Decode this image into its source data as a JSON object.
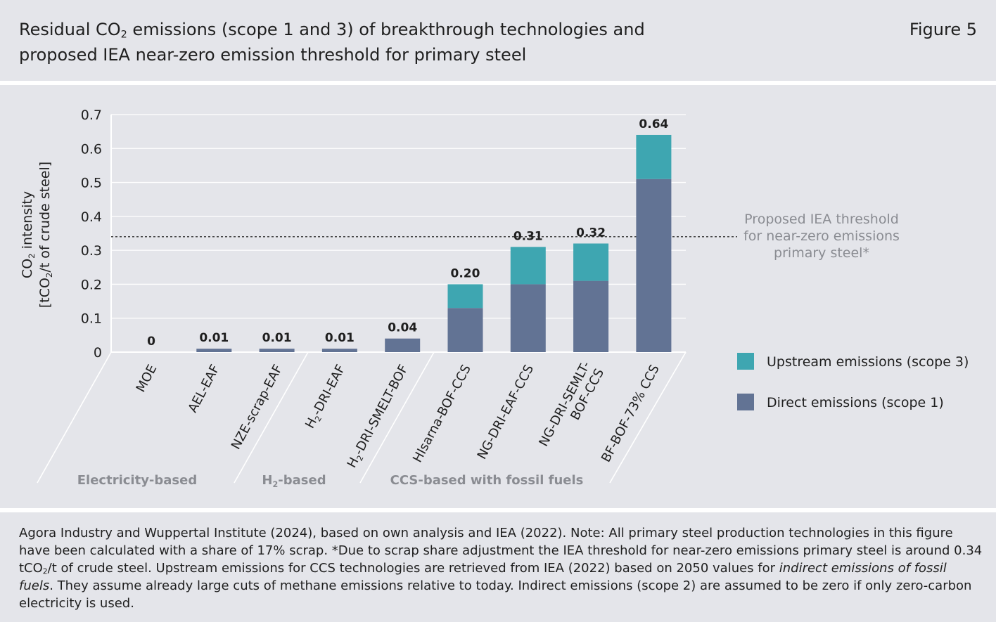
{
  "header": {
    "title_parts": [
      "Residual CO",
      "2",
      " emissions (scope 1 and 3) of breakthrough technologies and proposed IEA near-zero emission threshold for primary steel"
    ],
    "figure_label": "Figure 5"
  },
  "chart_data": {
    "type": "bar",
    "stacked": true,
    "ylabel_line1_parts": [
      "CO",
      "2",
      " intensity"
    ],
    "ylabel_line2_parts": [
      "[tCO",
      "2",
      "/t of crude steel]"
    ],
    "ylim": [
      0,
      0.7
    ],
    "yticks": [
      0,
      0.1,
      0.2,
      0.3,
      0.4,
      0.5,
      0.6,
      0.7
    ],
    "ytick_labels": [
      "0",
      "0.1",
      "0.2",
      "0.3",
      "0.4",
      "0.5",
      "0.6",
      "0.7"
    ],
    "grid": true,
    "categories": [
      {
        "parts": [
          "MOE"
        ]
      },
      {
        "parts": [
          "AEL-EAF"
        ]
      },
      {
        "parts": [
          "NZE-scrap-EAF"
        ]
      },
      {
        "parts": [
          "H",
          "2",
          "-DRI-EAF"
        ]
      },
      {
        "parts": [
          "H",
          "2",
          "-DRI-SMELT-BOF"
        ]
      },
      {
        "parts": [
          "HIsarna-BOF-CCS"
        ]
      },
      {
        "parts": [
          "NG-DRI-EAF-CCS"
        ]
      },
      {
        "parts": [
          "NG-DRI-SEMLT-",
          "BOF-CCS"
        ],
        "multiline": true
      },
      {
        "parts": [
          "BF-BOF-73% CCS"
        ]
      }
    ],
    "series": [
      {
        "name": "Direct emissions (scope 1)",
        "color": "#627394",
        "values": [
          0,
          0.01,
          0.01,
          0.01,
          0.04,
          0.13,
          0.2,
          0.21,
          0.51
        ]
      },
      {
        "name": "Upstream emissions (scope 3)",
        "color": "#3ea6b1",
        "values": [
          0,
          0,
          0,
          0,
          0,
          0.07,
          0.11,
          0.11,
          0.13
        ]
      }
    ],
    "total_labels": [
      "0",
      "0.01",
      "0.01",
      "0.01",
      "0.04",
      "0.20",
      "0.31",
      "0.32",
      "0.64"
    ],
    "groups": [
      {
        "label_parts": [
          "Electricity-based"
        ],
        "span": [
          0,
          2
        ]
      },
      {
        "label_parts": [
          "H",
          "2",
          "-based"
        ],
        "span": [
          3,
          4
        ]
      },
      {
        "label_parts": [
          "CCS-based with fossil fuels"
        ],
        "span": [
          5,
          8
        ]
      }
    ],
    "threshold": {
      "value": 0.34,
      "label_lines": [
        "Proposed IEA threshold",
        "for near-zero emissions",
        "primary steel*"
      ]
    },
    "legend": {
      "placement": "right",
      "entries": [
        {
          "label": "Upstream emissions (scope 3)",
          "color": "#3ea6b1"
        },
        {
          "label": "Direct emissions (scope 1)",
          "color": "#627394"
        }
      ]
    }
  },
  "footer": {
    "note_1": "Agora Industry and Wuppertal Institute (2024), based on own analysis and IEA (2022). Note: All primary steel production technologies in this figure have been calculated with a share of 17% scrap. *Due to scrap share adjustment the IEA threshold for near-zero emissions primary steel is around 0.34 tCO",
    "note_sub": "2",
    "note_2": "/t of crude steel. Upstream emissions for CCS technologies are retrieved from IEA (2022) based on 2050 values for ",
    "note_italic": "indirect emissions of fossil fuels",
    "note_3": ". They assume already large cuts of methane emissions relative to today. Indirect emissions (scope 2) are assumed to be zero if only zero-carbon electricity is used."
  }
}
